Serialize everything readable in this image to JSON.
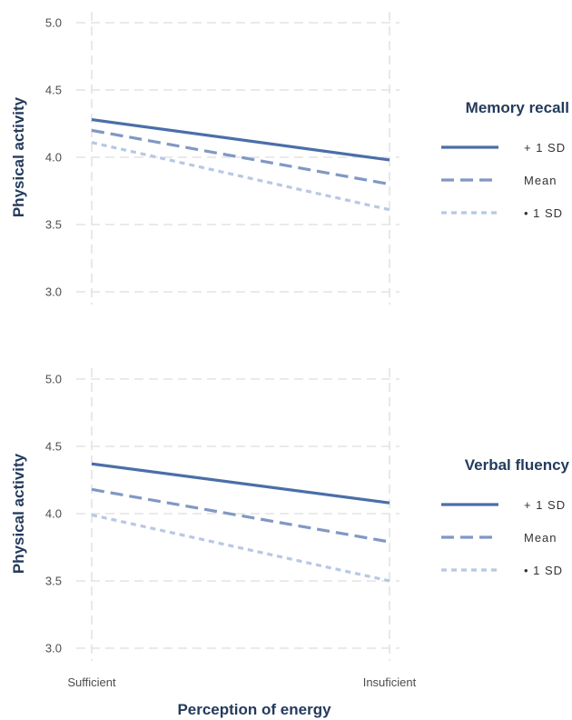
{
  "chart_data": [
    {
      "type": "line",
      "title": "",
      "xlabel": "",
      "ylabel": "Physical activity",
      "ylim": [
        3.0,
        5.0
      ],
      "yticks": [
        "3.0",
        "3.5",
        "4.0",
        "4.5",
        "5.0"
      ],
      "categories": [
        "Sufficient",
        "Insuficient"
      ],
      "show_x_tick_labels": false,
      "grid": true,
      "legend": {
        "title": "Memory recall",
        "placement": "right"
      },
      "series": [
        {
          "name": "+ 1 SD",
          "values": [
            4.28,
            3.98
          ],
          "style": "solid",
          "color": "#4a6fa8"
        },
        {
          "name": "Mean",
          "values": [
            4.2,
            3.8
          ],
          "style": "dashed",
          "color": "#8098c4"
        },
        {
          "name": "• 1 SD",
          "values": [
            4.11,
            3.61
          ],
          "style": "dotted",
          "color": "#b8c8e4"
        }
      ]
    },
    {
      "type": "line",
      "title": "",
      "xlabel": "Perception of energy",
      "ylabel": "Physical activity",
      "ylim": [
        3.0,
        5.0
      ],
      "yticks": [
        "3.0",
        "3.5",
        "4.0",
        "4.5",
        "5.0"
      ],
      "categories": [
        "Sufficient",
        "Insuficient"
      ],
      "show_x_tick_labels": true,
      "grid": true,
      "legend": {
        "title": "Verbal fluency",
        "placement": "right"
      },
      "series": [
        {
          "name": "+ 1 SD",
          "values": [
            4.37,
            4.08
          ],
          "style": "solid",
          "color": "#4a6fa8"
        },
        {
          "name": "Mean",
          "values": [
            4.18,
            3.79
          ],
          "style": "dashed",
          "color": "#8098c4"
        },
        {
          "name": "• 1 SD",
          "values": [
            3.99,
            3.5
          ],
          "style": "dotted",
          "color": "#b8c8e4"
        }
      ]
    }
  ]
}
